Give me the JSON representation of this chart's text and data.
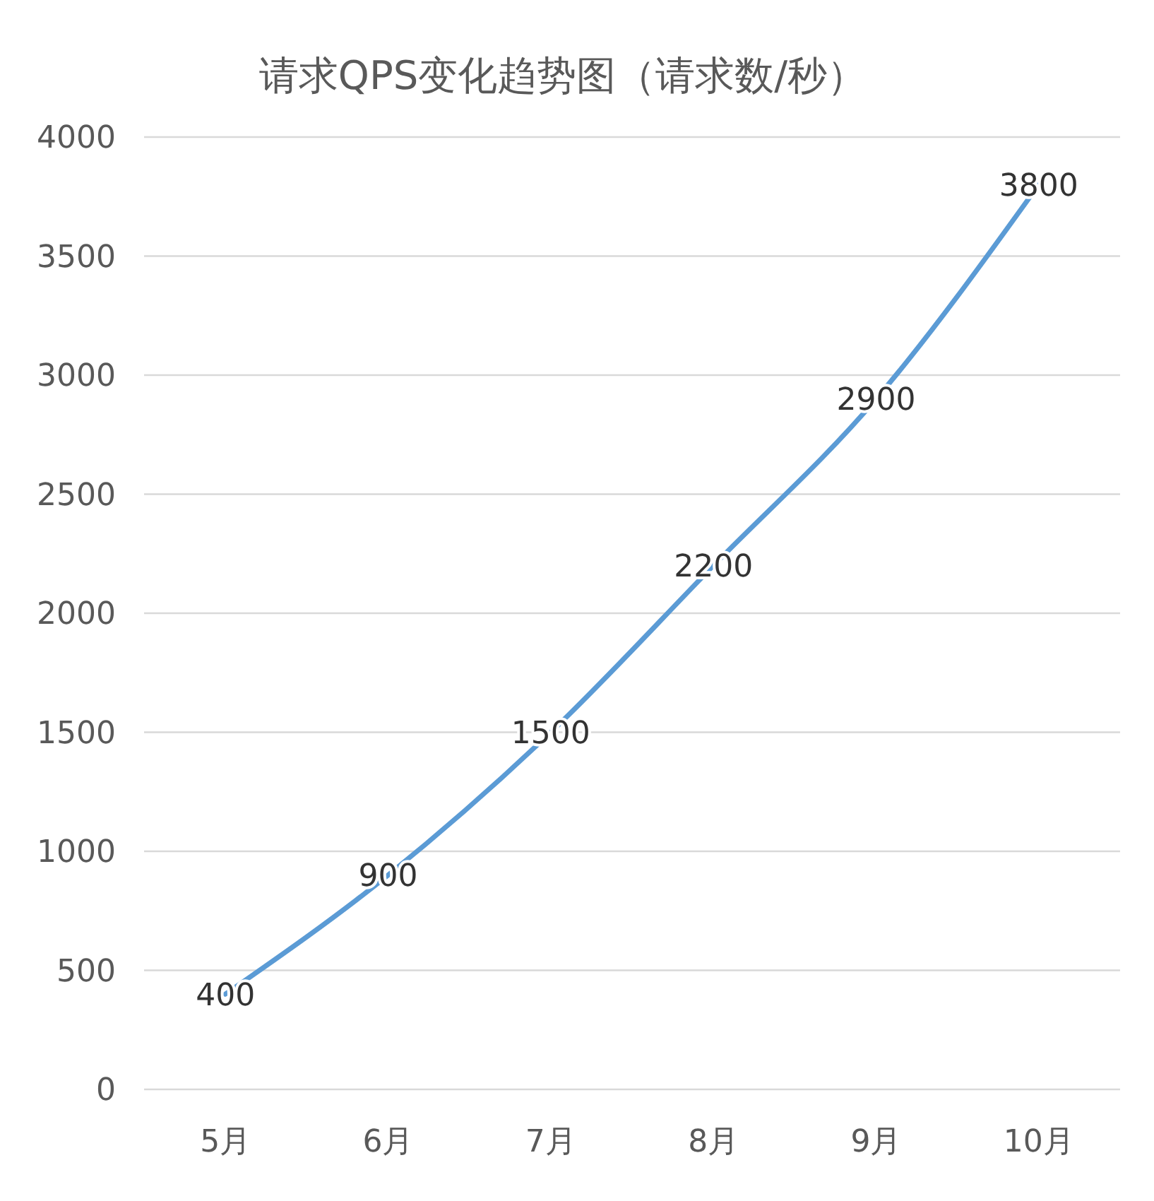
{
  "chart_data": {
    "type": "line",
    "title": "请求QPS变化趋势图（请求数/秒）",
    "categories": [
      "5月",
      "6月",
      "7月",
      "8月",
      "9月",
      "10月"
    ],
    "series": [
      {
        "color": "#5b9bd5",
        "values": [
          400,
          900,
          1500,
          2200,
          2900,
          3800
        ]
      }
    ],
    "ylim": [
      0,
      4000
    ],
    "yticks": [
      0,
      500,
      1000,
      1500,
      2000,
      2500,
      3000,
      3500,
      4000
    ],
    "grid": "y",
    "data_labels": true,
    "marker": "none",
    "line_style": "solid"
  }
}
